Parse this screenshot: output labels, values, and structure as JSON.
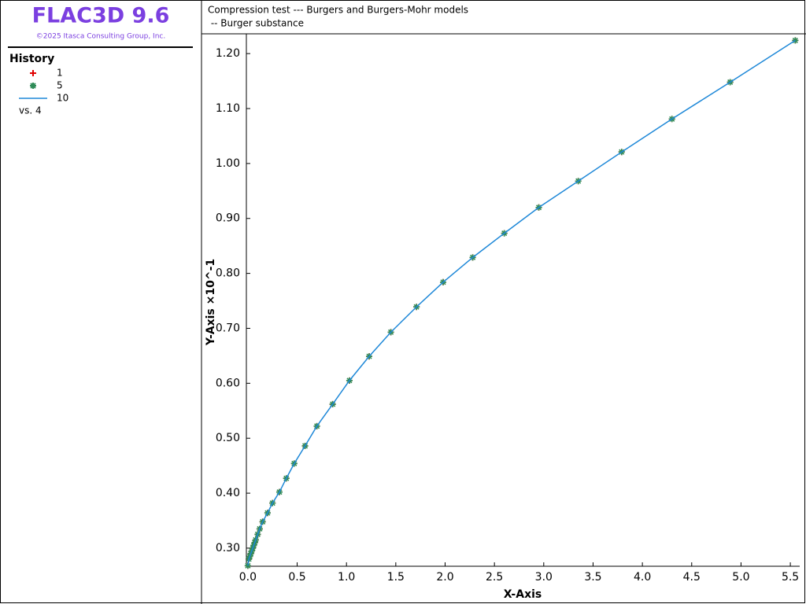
{
  "app_title": "FLAC3D 9.6",
  "copyright": "©2025 Itasca Consulting Group, Inc.",
  "legend_title": "History",
  "legend_vs": "vs. 4",
  "chart_data": {
    "type": "line",
    "title": "Compression test --- Burgers and Burgers-Mohr models",
    "subtitle": " -- Burger substance",
    "x_label": "X-Axis",
    "y_label": "Y-Axis ×10^-1",
    "x": [
      0,
      0.01,
      0.02,
      0.03,
      0.04,
      0.05,
      0.06,
      0.07,
      0.08,
      0.1,
      0.12,
      0.15,
      0.2,
      0.25,
      0.32,
      0.39,
      0.47,
      0.58,
      0.7,
      0.86,
      1.03,
      1.23,
      1.45,
      1.71,
      1.98,
      2.28,
      2.6,
      2.95,
      3.35,
      3.79,
      4.3,
      4.89,
      5.55
    ],
    "series": [
      {
        "name": "1",
        "color": "#e00000",
        "marker": "plus",
        "values": [
          0.268,
          0.28,
          0.285,
          0.29,
          0.295,
          0.3,
          0.305,
          0.31,
          0.315,
          0.325,
          0.335,
          0.348,
          0.364,
          0.382,
          0.402,
          0.427,
          0.454,
          0.486,
          0.522,
          0.562,
          0.605,
          0.649,
          0.693,
          0.739,
          0.784,
          0.829,
          0.873,
          0.92,
          0.968,
          1.021,
          1.081,
          1.148,
          1.224
        ]
      },
      {
        "name": "5",
        "color": "#2e8b57",
        "marker": "asterisk",
        "values": [
          0.268,
          0.28,
          0.285,
          0.29,
          0.295,
          0.3,
          0.305,
          0.31,
          0.315,
          0.325,
          0.335,
          0.348,
          0.364,
          0.382,
          0.402,
          0.427,
          0.454,
          0.486,
          0.522,
          0.562,
          0.605,
          0.649,
          0.693,
          0.739,
          0.784,
          0.829,
          0.873,
          0.92,
          0.968,
          1.021,
          1.081,
          1.148,
          1.224
        ]
      },
      {
        "name": "10",
        "color": "#1e88d8",
        "marker": "line",
        "values": [
          0.268,
          0.28,
          0.285,
          0.29,
          0.295,
          0.3,
          0.305,
          0.31,
          0.315,
          0.325,
          0.335,
          0.348,
          0.364,
          0.382,
          0.402,
          0.427,
          0.454,
          0.486,
          0.522,
          0.562,
          0.605,
          0.649,
          0.693,
          0.739,
          0.784,
          0.829,
          0.873,
          0.92,
          0.968,
          1.021,
          1.081,
          1.148,
          1.224
        ]
      }
    ],
    "xlim": [
      -0.015,
      5.595
    ],
    "ylim": [
      0.267,
      1.236
    ],
    "xticks": [
      {
        "value": 0,
        "label": "0.0"
      },
      0.5,
      {
        "value": 1,
        "label": "1.0"
      },
      1.5,
      {
        "value": 2,
        "label": "2.0"
      },
      2.5,
      {
        "value": 3,
        "label": "3.0"
      },
      3.5,
      {
        "value": 4,
        "label": "4.0"
      },
      4.5,
      {
        "value": 5,
        "label": "5.0"
      },
      5.5
    ],
    "yticks": [
      {
        "value": 0.3,
        "label": "0.30"
      },
      {
        "value": 0.4,
        "label": "0.40"
      },
      {
        "value": 0.5,
        "label": "0.50"
      },
      {
        "value": 0.6,
        "label": "0.60"
      },
      {
        "value": 0.7,
        "label": "0.70"
      },
      {
        "value": 0.8,
        "label": "0.80"
      },
      {
        "value": 0.9,
        "label": "0.90"
      },
      {
        "value": 1.0,
        "label": "1.00"
      },
      {
        "value": 1.1,
        "label": "1.10"
      },
      {
        "value": 1.2,
        "label": "1.20"
      }
    ]
  }
}
